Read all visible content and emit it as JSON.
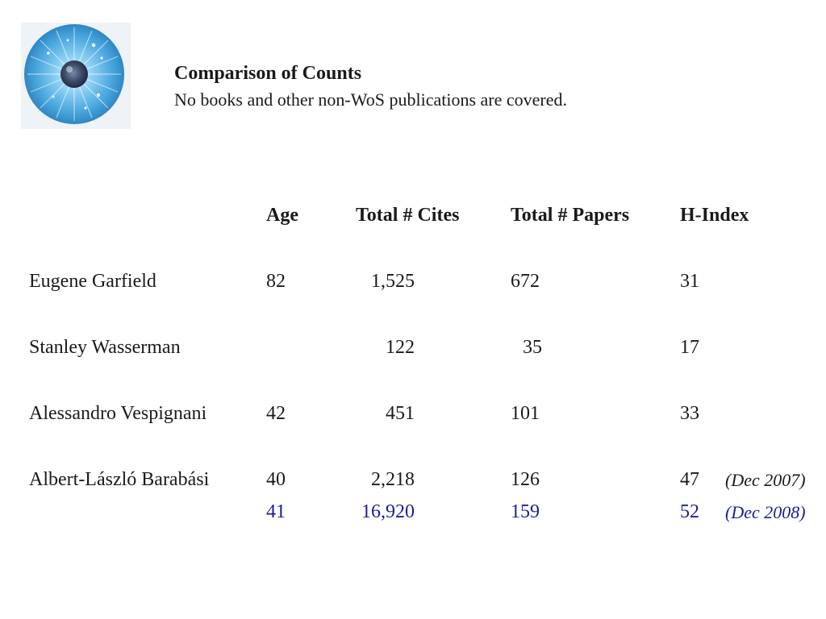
{
  "logo": {
    "icon": "eye-iris-icon",
    "colors": {
      "iris": "#4aa8dd",
      "pupil": "#3a4a66"
    }
  },
  "title": "Comparison of Counts",
  "subtitle": "No books and other non-WoS publications are covered.",
  "table": {
    "headers": [
      "Age",
      "Total # Cites",
      "Total # Papers",
      "H-Index"
    ],
    "rows": [
      {
        "name": "Eugene Garfield",
        "age": "82",
        "cites": "1,525",
        "papers": "672",
        "hindex": "31"
      },
      {
        "name": "Stanley Wasserman",
        "age": "",
        "cites": "122",
        "papers": "35",
        "hindex": "17"
      },
      {
        "name": "Alessandro Vespignani",
        "age": "42",
        "cites": "451",
        "papers": "101",
        "hindex": "33"
      },
      {
        "name": "Albert-László Barabási",
        "age": "40",
        "cites": "2,218",
        "papers": "126",
        "hindex": "47",
        "note": "(Dec 2007)"
      }
    ],
    "update_row": {
      "age": "41",
      "cites": "16,920",
      "papers": "159",
      "hindex": "52",
      "note": "(Dec 2008)",
      "color": "#1c1c99"
    }
  }
}
